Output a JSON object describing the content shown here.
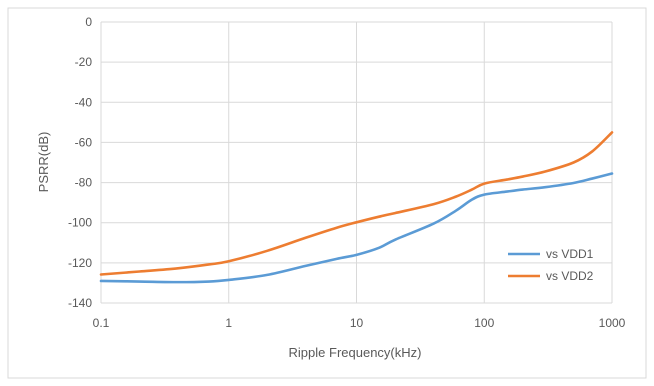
{
  "chart_data": {
    "type": "line",
    "title": "",
    "xlabel": "Ripple Frequency(kHz)",
    "ylabel": "PSRR(dB)",
    "x_scale": "log",
    "xlim": [
      0.1,
      1000
    ],
    "ylim": [
      -140,
      0
    ],
    "x_ticks": [
      0.1,
      1,
      10,
      100,
      1000
    ],
    "x_tick_labels": [
      "0.1",
      "1",
      "10",
      "100",
      "1000"
    ],
    "y_ticks": [
      0,
      -20,
      -40,
      -60,
      -80,
      -100,
      -120,
      -140
    ],
    "y_tick_labels": [
      "0",
      "-20",
      "-40",
      "-60",
      "-80",
      "-100",
      "-120",
      "-140"
    ],
    "grid": "vertical and horizontal",
    "legend_position": "bottom-right",
    "series": [
      {
        "name": "vs VDD1",
        "color": "#5B9BD5",
        "x": [
          0.1,
          0.2,
          0.4,
          0.7,
          1,
          2,
          4,
          7,
          10,
          15,
          20,
          40,
          60,
          80,
          100,
          150,
          200,
          300,
          500,
          700,
          1000
        ],
        "y": [
          -129,
          -129.3,
          -129.6,
          -129.3,
          -128.5,
          -126,
          -121.5,
          -118,
          -116,
          -112.5,
          -108.5,
          -100.5,
          -94,
          -88.5,
          -86,
          -84.5,
          -83.5,
          -82.3,
          -80.2,
          -78,
          -75.5
        ]
      },
      {
        "name": "vs VDD2",
        "color": "#ED7D31",
        "x": [
          0.1,
          0.2,
          0.4,
          0.7,
          1,
          2,
          4,
          7,
          10,
          15,
          20,
          40,
          60,
          80,
          100,
          150,
          200,
          300,
          500,
          700,
          1000
        ],
        "y": [
          -125.8,
          -124.3,
          -122.7,
          -120.8,
          -119.2,
          -114,
          -107.5,
          -102.5,
          -99.8,
          -97,
          -95.2,
          -90.8,
          -87,
          -83.5,
          -80.5,
          -78.5,
          -77,
          -74.5,
          -70,
          -64.5,
          -55
        ]
      }
    ]
  }
}
